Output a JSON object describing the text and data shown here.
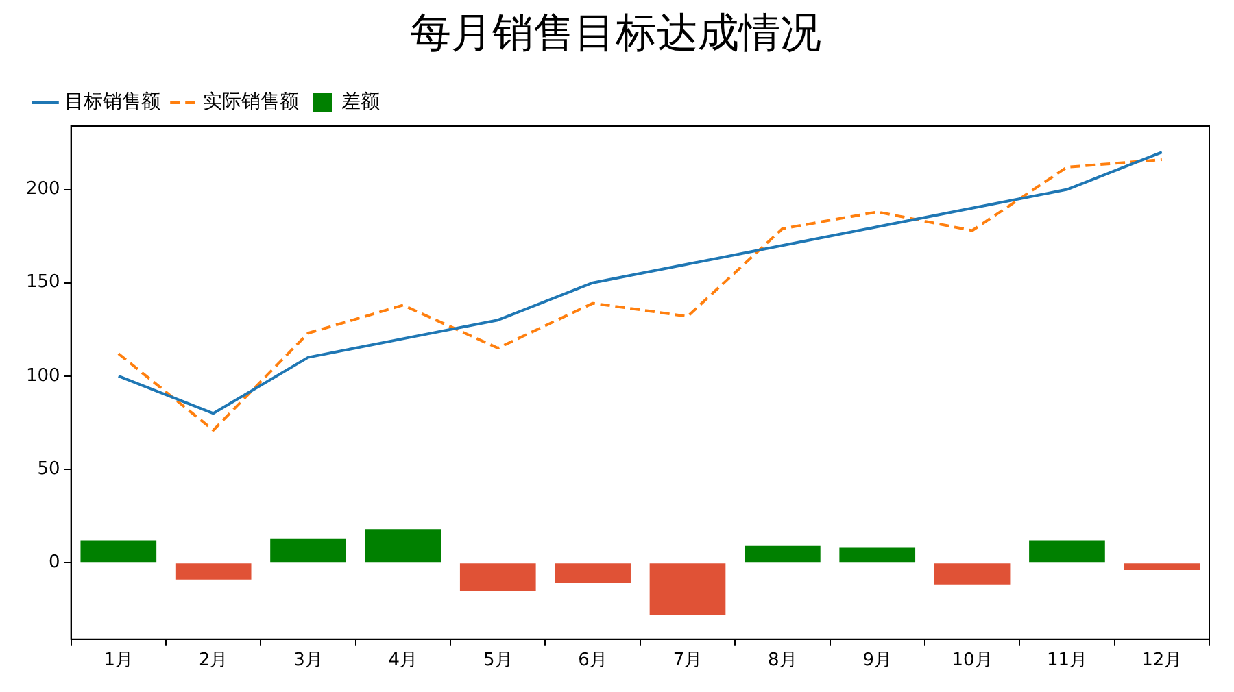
{
  "chart_data": {
    "type": "line",
    "title": "每月销售目标达成情况",
    "categories": [
      "1月",
      "2月",
      "3月",
      "4月",
      "5月",
      "6月",
      "7月",
      "8月",
      "9月",
      "10月",
      "11月",
      "12月"
    ],
    "series": [
      {
        "name": "目标销售额",
        "color": "#1f77b4",
        "line_style": "solid",
        "values": [
          100,
          80,
          110,
          120,
          130,
          150,
          160,
          170,
          180,
          190,
          200,
          220
        ]
      },
      {
        "name": "实际销售额",
        "color": "#ff7f0e",
        "line_style": "dashed",
        "values": [
          112,
          71,
          123,
          138,
          115,
          139,
          132,
          179,
          188,
          178,
          212,
          216
        ]
      },
      {
        "name": "差额",
        "type": "bar",
        "color": "#008000",
        "colors": [
          "#008000",
          "#e05236",
          "#008000",
          "#008000",
          "#e05236",
          "#e05236",
          "#e05236",
          "#008000",
          "#008000",
          "#e05236",
          "#008000",
          "#e05236"
        ],
        "values": [
          12,
          -9,
          13,
          18,
          -15,
          -11,
          -28,
          9,
          8,
          -12,
          12,
          -4
        ]
      }
    ],
    "ylim": [
      -41,
      234
    ],
    "yticks": [
      0,
      50,
      100,
      150,
      200
    ],
    "grid": false,
    "legend": "top left",
    "marker": "none"
  }
}
